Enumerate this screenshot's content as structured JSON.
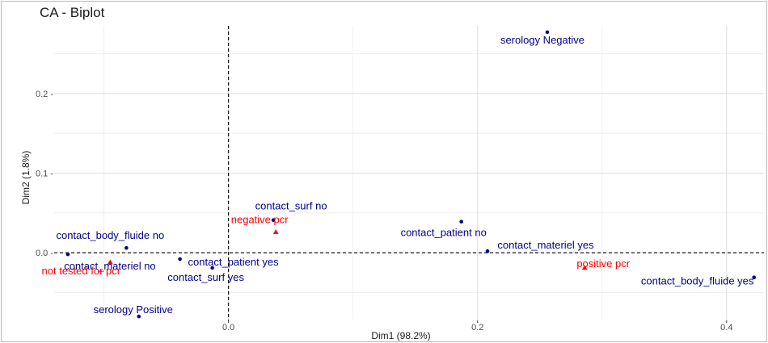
{
  "chart_data": {
    "type": "scatter",
    "title": "CA - Biplot",
    "xlabel": "Dim1 (98.2%)",
    "ylabel": "Dim2 (1.8%)",
    "xlim": [
      -0.14,
      0.43
    ],
    "ylim": [
      -0.085,
      0.285
    ],
    "x_ticks": [
      0.0,
      0.2,
      0.4
    ],
    "y_ticks": [
      0.0,
      0.1,
      0.2
    ],
    "x_tick_labels": [
      "0.0",
      "0.2",
      "0.4"
    ],
    "y_tick_labels": [
      "0.0 -",
      "0.1 -",
      "0.2 -"
    ],
    "grid": true,
    "reference_lines": {
      "x": 0,
      "y": 0,
      "style": "dashed"
    },
    "colors": {
      "column_points": "#00008B",
      "row_points": "#FF0000"
    },
    "series": [
      {
        "marker": "circle",
        "color": "#00008B",
        "points": [
          {
            "label": "serology Negative",
            "x": 0.256,
            "y": 0.277
          },
          {
            "label": "serology Positive",
            "x": -0.072,
            "y": -0.08
          },
          {
            "label": "contact_surf no",
            "x": 0.036,
            "y": 0.041
          },
          {
            "label": "contact_surf yes",
            "x": -0.013,
            "y": -0.019
          },
          {
            "label": "contact_patient no",
            "x": 0.187,
            "y": 0.039
          },
          {
            "label": "contact_patient yes",
            "x": -0.039,
            "y": -0.008
          },
          {
            "label": "contact_materiel yes",
            "x": 0.208,
            "y": 0.002
          },
          {
            "label": "contact_materiel no",
            "x": -0.129,
            "y": -0.002
          },
          {
            "label": "contact_body_fluide no",
            "x": -0.082,
            "y": 0.006
          },
          {
            "label": "contact_body_fluide yes",
            "x": 0.422,
            "y": -0.031
          }
        ]
      },
      {
        "marker": "triangle",
        "color": "#FF0000",
        "points": [
          {
            "label": "negative pcr",
            "x": 0.038,
            "y": 0.026
          },
          {
            "label": "positive pcr",
            "x": 0.286,
            "y": -0.019
          },
          {
            "label": "not tested for pcr",
            "x": -0.095,
            "y": -0.012
          }
        ]
      }
    ]
  }
}
